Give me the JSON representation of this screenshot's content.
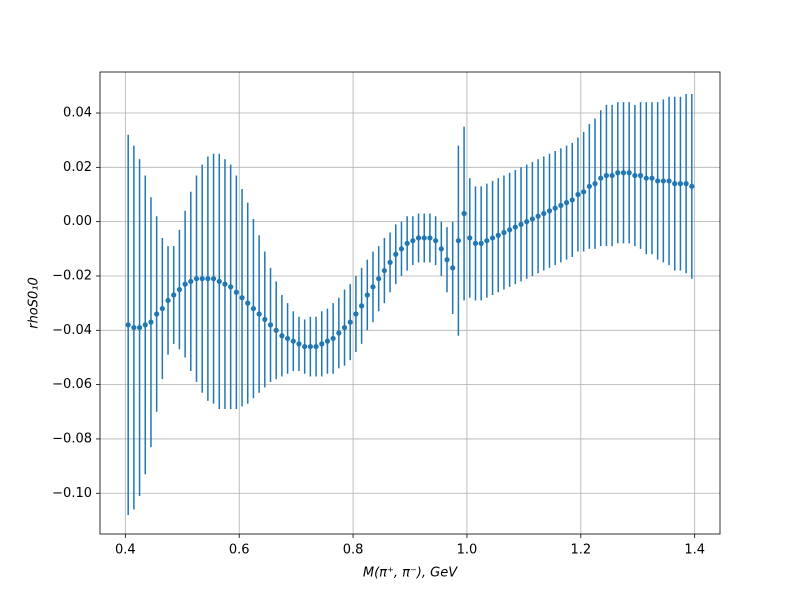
{
  "chart_data": {
    "type": "errorbar",
    "xlabel": "M(π⁺, π⁻), GeV",
    "ylabel": "rhoS0₁0",
    "x": [
      0.405,
      0.415,
      0.425,
      0.435,
      0.445,
      0.455,
      0.465,
      0.475,
      0.485,
      0.495,
      0.505,
      0.515,
      0.525,
      0.535,
      0.545,
      0.555,
      0.565,
      0.575,
      0.585,
      0.595,
      0.605,
      0.615,
      0.625,
      0.635,
      0.645,
      0.655,
      0.665,
      0.675,
      0.685,
      0.695,
      0.705,
      0.715,
      0.725,
      0.735,
      0.745,
      0.755,
      0.765,
      0.775,
      0.785,
      0.795,
      0.805,
      0.815,
      0.825,
      0.835,
      0.845,
      0.855,
      0.865,
      0.875,
      0.885,
      0.895,
      0.905,
      0.915,
      0.925,
      0.935,
      0.945,
      0.955,
      0.965,
      0.975,
      0.985,
      0.995,
      1.005,
      1.015,
      1.025,
      1.035,
      1.045,
      1.055,
      1.065,
      1.075,
      1.085,
      1.095,
      1.105,
      1.115,
      1.125,
      1.135,
      1.145,
      1.155,
      1.165,
      1.175,
      1.185,
      1.195,
      1.205,
      1.215,
      1.225,
      1.235,
      1.245,
      1.255,
      1.265,
      1.275,
      1.285,
      1.295,
      1.305,
      1.315,
      1.325,
      1.335,
      1.345,
      1.355,
      1.365,
      1.375,
      1.385,
      1.395
    ],
    "series": [
      {
        "color": "#1f77b4",
        "values": [
          -0.038,
          -0.039,
          -0.039,
          -0.038,
          -0.037,
          -0.034,
          -0.032,
          -0.029,
          -0.027,
          -0.025,
          -0.023,
          -0.022,
          -0.021,
          -0.021,
          -0.021,
          -0.021,
          -0.022,
          -0.023,
          -0.024,
          -0.026,
          -0.028,
          -0.03,
          -0.032,
          -0.034,
          -0.036,
          -0.038,
          -0.04,
          -0.042,
          -0.043,
          -0.044,
          -0.045,
          -0.046,
          -0.046,
          -0.046,
          -0.045,
          -0.044,
          -0.043,
          -0.041,
          -0.039,
          -0.037,
          -0.034,
          -0.031,
          -0.027,
          -0.024,
          -0.021,
          -0.018,
          -0.015,
          -0.012,
          -0.01,
          -0.008,
          -0.007,
          -0.006,
          -0.006,
          -0.006,
          -0.007,
          -0.01,
          -0.014,
          -0.017,
          -0.007,
          0.003,
          -0.006,
          -0.008,
          -0.008,
          -0.007,
          -0.006,
          -0.005,
          -0.004,
          -0.003,
          -0.002,
          -0.001,
          0.0,
          0.001,
          0.002,
          0.003,
          0.004,
          0.005,
          0.006,
          0.007,
          0.008,
          0.01,
          0.011,
          0.013,
          0.014,
          0.016,
          0.017,
          0.017,
          0.018,
          0.018,
          0.018,
          0.017,
          0.017,
          0.016,
          0.016,
          0.015,
          0.015,
          0.015,
          0.014,
          0.014,
          0.014,
          0.013
        ],
        "errors": [
          0.07,
          0.067,
          0.062,
          0.055,
          0.046,
          0.036,
          0.026,
          0.02,
          0.018,
          0.022,
          0.027,
          0.033,
          0.038,
          0.042,
          0.045,
          0.046,
          0.047,
          0.046,
          0.045,
          0.043,
          0.04,
          0.037,
          0.033,
          0.029,
          0.025,
          0.021,
          0.018,
          0.015,
          0.013,
          0.011,
          0.01,
          0.01,
          0.011,
          0.011,
          0.012,
          0.012,
          0.013,
          0.013,
          0.014,
          0.014,
          0.014,
          0.014,
          0.013,
          0.013,
          0.012,
          0.012,
          0.011,
          0.011,
          0.01,
          0.01,
          0.009,
          0.009,
          0.009,
          0.009,
          0.009,
          0.01,
          0.012,
          0.017,
          0.035,
          0.032,
          0.022,
          0.021,
          0.021,
          0.021,
          0.021,
          0.021,
          0.021,
          0.021,
          0.021,
          0.021,
          0.021,
          0.021,
          0.021,
          0.021,
          0.021,
          0.021,
          0.021,
          0.021,
          0.021,
          0.021,
          0.022,
          0.023,
          0.024,
          0.025,
          0.026,
          0.026,
          0.026,
          0.026,
          0.026,
          0.026,
          0.027,
          0.028,
          0.028,
          0.029,
          0.03,
          0.031,
          0.032,
          0.032,
          0.033,
          0.034
        ]
      }
    ],
    "xlim": [
      0.3555,
      1.4445
    ],
    "ylim": [
      -0.115,
      0.0551
    ],
    "xticks": [
      0.4,
      0.6,
      0.8,
      {
        "value": 1.0,
        "label": "1.0"
      },
      1.2,
      1.4
    ],
    "yticks": [
      {
        "value": -0.1,
        "label": "−0.10"
      },
      {
        "value": -0.08,
        "label": "−0.08"
      },
      {
        "value": -0.06,
        "label": "−0.06"
      },
      {
        "value": -0.04,
        "label": "−0.04"
      },
      {
        "value": -0.02,
        "label": "−0.02"
      },
      {
        "value": 0,
        "label": "0.00"
      },
      0.02,
      0.04
    ],
    "grid": true
  }
}
